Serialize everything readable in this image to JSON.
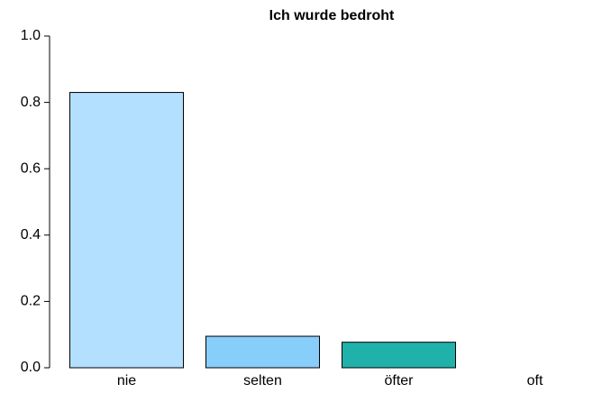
{
  "chart_data": {
    "type": "bar",
    "title": "Ich wurde bedroht",
    "categories": [
      "nie",
      "selten",
      "öfter",
      "oft"
    ],
    "values": [
      0.83,
      0.095,
      0.077,
      0
    ],
    "colors": [
      "#b3e0ff",
      "#87cefa",
      "#20b2aa",
      "#ffffff"
    ],
    "ylim": [
      0,
      1
    ],
    "yticks": [
      {
        "value": 0,
        "label": "0.0"
      },
      0.2,
      0.4,
      0.6,
      0.8,
      {
        "value": 1,
        "label": "1.0"
      }
    ],
    "grid": false
  }
}
